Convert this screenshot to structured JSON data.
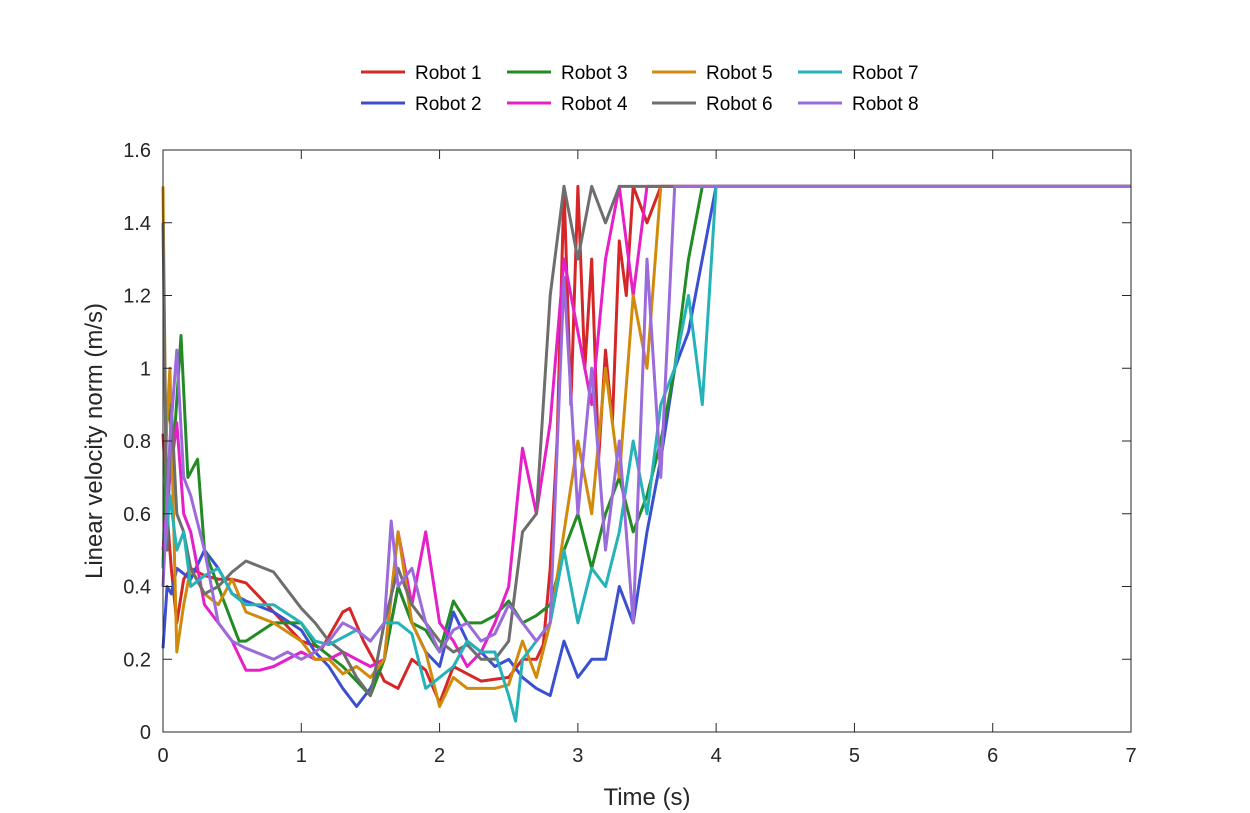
{
  "chart_data": {
    "type": "line",
    "title": "",
    "xlabel": "Time (s)",
    "ylabel": "Linear velocity norm (m/s)",
    "xlim": [
      0,
      7
    ],
    "ylim": [
      0,
      1.6
    ],
    "xticks": [
      0,
      1,
      2,
      3,
      4,
      5,
      6,
      7
    ],
    "yticks": [
      0,
      0.2,
      0.4,
      0.6,
      0.8,
      1,
      1.2,
      1.4,
      1.6
    ],
    "grid": false,
    "legend_placement": "top-center",
    "series": [
      {
        "name": "Robot 1",
        "color": "#d62728",
        "x": [
          0,
          0.03,
          0.06,
          0.1,
          0.15,
          0.2,
          0.3,
          0.4,
          0.5,
          0.6,
          0.8,
          1.0,
          1.15,
          1.3,
          1.35,
          1.45,
          1.55,
          1.6,
          1.7,
          1.8,
          1.9,
          2.0,
          2.1,
          2.2,
          2.3,
          2.5,
          2.6,
          2.7,
          2.75,
          2.8,
          2.85,
          2.9,
          2.95,
          3.0,
          3.05,
          3.1,
          3.15,
          3.2,
          3.25,
          3.3,
          3.35,
          3.4,
          3.5,
          3.6,
          7
        ],
        "y": [
          0.82,
          0.6,
          0.45,
          0.3,
          0.42,
          0.45,
          0.43,
          0.42,
          0.42,
          0.41,
          0.33,
          0.25,
          0.23,
          0.33,
          0.34,
          0.25,
          0.18,
          0.14,
          0.12,
          0.2,
          0.17,
          0.08,
          0.18,
          0.16,
          0.14,
          0.15,
          0.2,
          0.2,
          0.24,
          0.45,
          0.8,
          1.5,
          0.9,
          1.5,
          1.0,
          1.3,
          0.75,
          1.05,
          0.85,
          1.35,
          1.2,
          1.5,
          1.4,
          1.5,
          1.5
        ]
      },
      {
        "name": "Robot 2",
        "color": "#3b4fd1",
        "x": [
          0,
          0.03,
          0.06,
          0.1,
          0.2,
          0.3,
          0.4,
          0.5,
          0.6,
          0.8,
          1.0,
          1.1,
          1.2,
          1.3,
          1.4,
          1.5,
          1.6,
          1.7,
          1.8,
          1.9,
          2.0,
          2.1,
          2.2,
          2.3,
          2.4,
          2.5,
          2.6,
          2.7,
          2.8,
          2.9,
          3.0,
          3.1,
          3.2,
          3.3,
          3.4,
          3.5,
          3.6,
          3.7,
          3.8,
          3.9,
          4.0,
          7
        ],
        "y": [
          0.23,
          0.4,
          0.38,
          0.45,
          0.42,
          0.5,
          0.45,
          0.38,
          0.36,
          0.33,
          0.28,
          0.22,
          0.18,
          0.12,
          0.07,
          0.12,
          0.2,
          0.4,
          0.3,
          0.22,
          0.18,
          0.33,
          0.25,
          0.22,
          0.18,
          0.2,
          0.15,
          0.12,
          0.1,
          0.25,
          0.15,
          0.2,
          0.2,
          0.4,
          0.3,
          0.55,
          0.75,
          1.0,
          1.1,
          1.3,
          1.5,
          1.5
        ]
      },
      {
        "name": "Robot 3",
        "color": "#238b23",
        "x": [
          0,
          0.03,
          0.08,
          0.13,
          0.18,
          0.25,
          0.3,
          0.4,
          0.5,
          0.55,
          0.6,
          0.8,
          1.0,
          1.1,
          1.3,
          1.4,
          1.5,
          1.6,
          1.7,
          1.8,
          1.9,
          2.0,
          2.1,
          2.2,
          2.3,
          2.4,
          2.5,
          2.6,
          2.7,
          2.8,
          2.9,
          3.0,
          3.1,
          3.2,
          3.3,
          3.4,
          3.5,
          3.6,
          3.7,
          3.8,
          3.9,
          7
        ],
        "y": [
          0.45,
          0.9,
          0.8,
          1.09,
          0.7,
          0.75,
          0.5,
          0.4,
          0.3,
          0.25,
          0.25,
          0.3,
          0.3,
          0.24,
          0.18,
          0.14,
          0.1,
          0.2,
          0.4,
          0.3,
          0.28,
          0.22,
          0.36,
          0.3,
          0.3,
          0.32,
          0.36,
          0.3,
          0.32,
          0.35,
          0.5,
          0.6,
          0.45,
          0.6,
          0.7,
          0.55,
          0.65,
          0.8,
          1.0,
          1.3,
          1.5,
          1.5
        ]
      },
      {
        "name": "Robot 4",
        "color": "#e620c8",
        "x": [
          0,
          0.05,
          0.1,
          0.15,
          0.2,
          0.3,
          0.4,
          0.5,
          0.6,
          0.7,
          0.8,
          1.0,
          1.1,
          1.2,
          1.3,
          1.4,
          1.5,
          1.6,
          1.7,
          1.8,
          1.9,
          2.0,
          2.1,
          2.2,
          2.3,
          2.4,
          2.5,
          2.6,
          2.7,
          2.8,
          2.9,
          3.0,
          3.1,
          3.2,
          3.3,
          3.4,
          3.5,
          3.6,
          7
        ],
        "y": [
          0.5,
          0.7,
          0.85,
          0.6,
          0.55,
          0.35,
          0.3,
          0.25,
          0.17,
          0.17,
          0.18,
          0.22,
          0.2,
          0.2,
          0.22,
          0.2,
          0.18,
          0.2,
          0.55,
          0.35,
          0.55,
          0.3,
          0.25,
          0.18,
          0.22,
          0.3,
          0.4,
          0.78,
          0.6,
          0.85,
          1.3,
          1.1,
          0.9,
          1.3,
          1.5,
          1.2,
          1.5,
          1.5,
          1.5
        ]
      },
      {
        "name": "Robot 5",
        "color": "#d18b0c",
        "x": [
          0,
          0.02,
          0.05,
          0.1,
          0.15,
          0.2,
          0.3,
          0.4,
          0.5,
          0.6,
          0.8,
          1.0,
          1.1,
          1.2,
          1.3,
          1.4,
          1.5,
          1.6,
          1.7,
          1.8,
          1.9,
          2.0,
          2.1,
          2.2,
          2.3,
          2.4,
          2.5,
          2.6,
          2.7,
          2.8,
          2.9,
          3.0,
          3.1,
          3.2,
          3.3,
          3.4,
          3.5,
          3.6,
          3.7,
          7
        ],
        "y": [
          1.5,
          0.8,
          1.0,
          0.22,
          0.35,
          0.45,
          0.38,
          0.35,
          0.42,
          0.33,
          0.3,
          0.25,
          0.2,
          0.2,
          0.16,
          0.18,
          0.15,
          0.2,
          0.55,
          0.3,
          0.22,
          0.07,
          0.15,
          0.12,
          0.12,
          0.12,
          0.13,
          0.25,
          0.15,
          0.3,
          0.55,
          0.8,
          0.6,
          1.0,
          0.7,
          1.2,
          1.0,
          1.5,
          1.5,
          1.5
        ]
      },
      {
        "name": "Robot 6",
        "color": "#6e6e6e",
        "x": [
          0,
          0.03,
          0.06,
          0.1,
          0.15,
          0.2,
          0.3,
          0.4,
          0.5,
          0.6,
          0.8,
          1.0,
          1.1,
          1.2,
          1.3,
          1.4,
          1.5,
          1.6,
          1.7,
          1.8,
          1.9,
          2.0,
          2.1,
          2.2,
          2.3,
          2.4,
          2.5,
          2.6,
          2.7,
          2.8,
          2.9,
          3.0,
          3.1,
          3.2,
          3.3,
          7
        ],
        "y": [
          1.4,
          0.5,
          0.9,
          0.6,
          0.55,
          0.45,
          0.38,
          0.4,
          0.44,
          0.47,
          0.44,
          0.34,
          0.3,
          0.25,
          0.22,
          0.15,
          0.1,
          0.3,
          0.45,
          0.35,
          0.3,
          0.25,
          0.22,
          0.24,
          0.2,
          0.2,
          0.25,
          0.55,
          0.6,
          1.2,
          1.5,
          1.3,
          1.5,
          1.4,
          1.5,
          1.5
        ]
      },
      {
        "name": "Robot 7",
        "color": "#23b3b8",
        "x": [
          0,
          0.05,
          0.1,
          0.15,
          0.2,
          0.3,
          0.4,
          0.5,
          0.6,
          0.8,
          1.0,
          1.1,
          1.2,
          1.3,
          1.4,
          1.5,
          1.6,
          1.7,
          1.8,
          1.9,
          2.0,
          2.1,
          2.2,
          2.3,
          2.4,
          2.5,
          2.55,
          2.6,
          2.7,
          2.8,
          2.9,
          3.0,
          3.1,
          3.2,
          3.3,
          3.4,
          3.5,
          3.6,
          3.7,
          3.8,
          3.9,
          4.0,
          7
        ],
        "y": [
          0.45,
          0.65,
          0.5,
          0.55,
          0.4,
          0.43,
          0.45,
          0.38,
          0.35,
          0.35,
          0.3,
          0.25,
          0.24,
          0.26,
          0.28,
          0.25,
          0.3,
          0.3,
          0.27,
          0.12,
          0.15,
          0.18,
          0.25,
          0.22,
          0.22,
          0.1,
          0.03,
          0.2,
          0.25,
          0.3,
          0.5,
          0.3,
          0.45,
          0.4,
          0.55,
          0.8,
          0.6,
          0.9,
          1.0,
          1.2,
          0.9,
          1.5,
          1.5
        ]
      },
      {
        "name": "Robot 8",
        "color": "#9b6bdb",
        "x": [
          0,
          0.05,
          0.1,
          0.15,
          0.2,
          0.3,
          0.4,
          0.5,
          0.6,
          0.8,
          0.9,
          1.0,
          1.1,
          1.2,
          1.3,
          1.4,
          1.5,
          1.6,
          1.65,
          1.7,
          1.8,
          1.9,
          2.0,
          2.1,
          2.2,
          2.3,
          2.4,
          2.5,
          2.6,
          2.7,
          2.8,
          2.9,
          3.0,
          3.1,
          3.2,
          3.3,
          3.4,
          3.5,
          3.6,
          3.7,
          3.8,
          7
        ],
        "y": [
          0.4,
          0.8,
          1.05,
          0.7,
          0.65,
          0.5,
          0.3,
          0.25,
          0.23,
          0.2,
          0.22,
          0.2,
          0.22,
          0.25,
          0.3,
          0.28,
          0.25,
          0.3,
          0.58,
          0.4,
          0.45,
          0.3,
          0.22,
          0.28,
          0.3,
          0.25,
          0.27,
          0.35,
          0.3,
          0.25,
          0.3,
          1.25,
          0.6,
          1.0,
          0.5,
          0.8,
          0.3,
          1.3,
          0.7,
          1.5,
          1.5,
          1.5
        ]
      }
    ]
  }
}
